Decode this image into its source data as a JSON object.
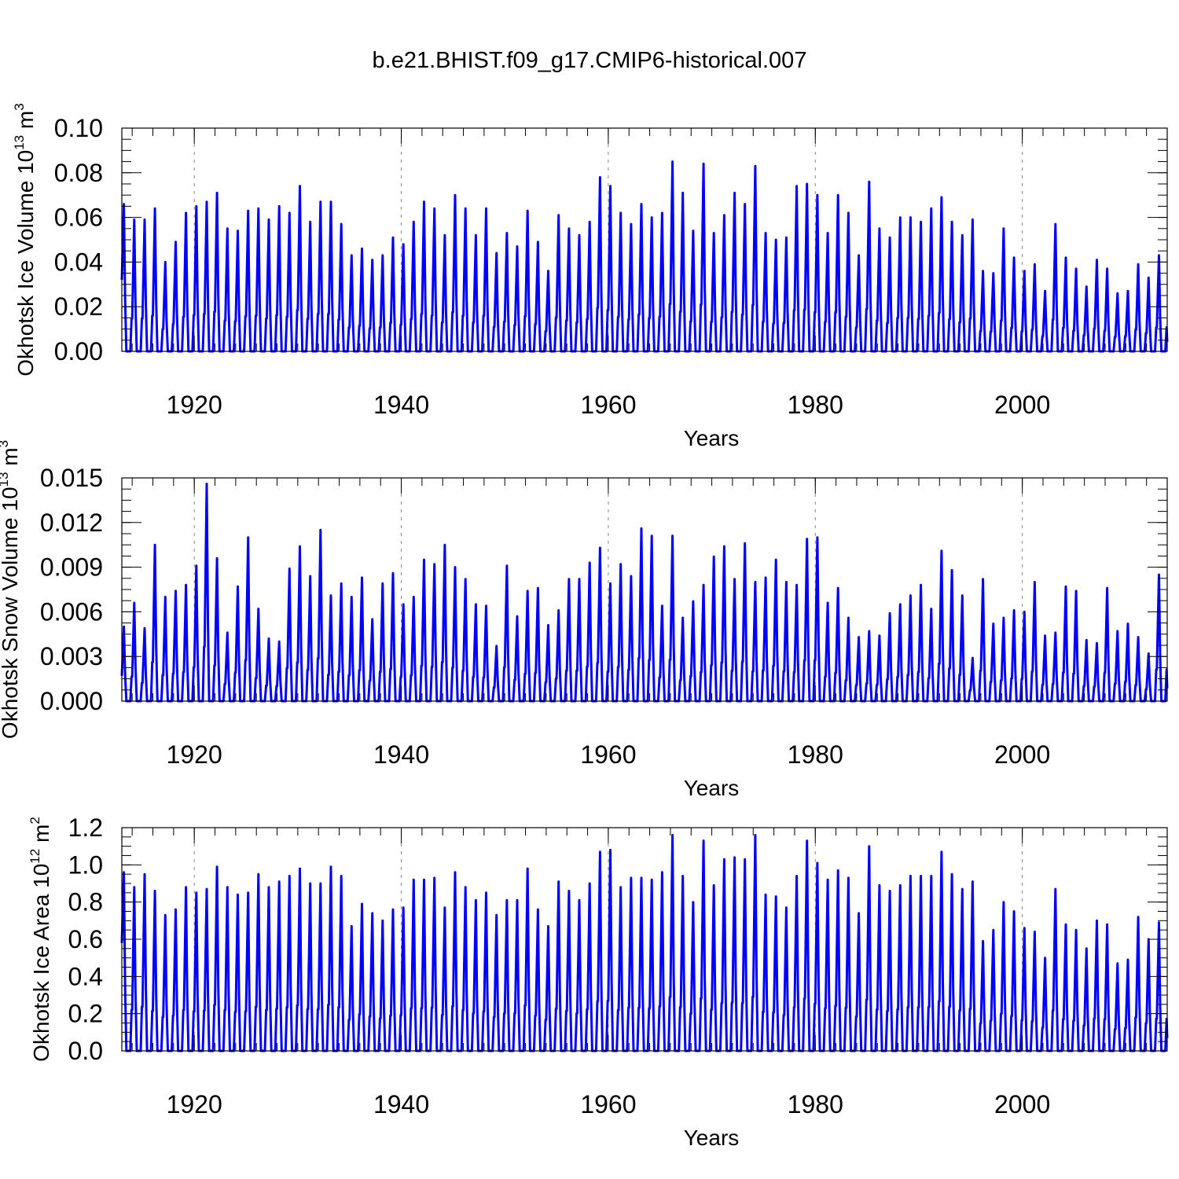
{
  "title": "b.e21.BHIST.f09_g17.CMIP6-historical.007",
  "colors": {
    "series": "#0000ff",
    "axis": "#000000",
    "refline": "#888888"
  },
  "chart_data": [
    {
      "type": "line",
      "name": "ice-volume",
      "ylabel": "Okhotsk Ice Volume 10",
      "ylabel_exp": "13",
      "ylabel_unit": " m",
      "ylabel_unit_exp": "3",
      "xlabel": "Years",
      "xlim": [
        1913,
        2014
      ],
      "xticks": [
        1920,
        1940,
        1960,
        1980,
        2000
      ],
      "xtick_labels": [
        "1920",
        "1940",
        "1960",
        "1980",
        "2000"
      ],
      "ylim": [
        0,
        0.1
      ],
      "yticks": [
        0,
        0.02,
        0.04,
        0.06,
        0.08,
        0.1
      ],
      "ytick_labels": [
        "0.00",
        "0.02",
        "0.04",
        "0.06",
        "0.08",
        "0.10"
      ],
      "y_minor_step": 0.005,
      "x_minor_step": 2,
      "peak_month": 0.2,
      "start_value": 0.032,
      "annual_peaks": [
        0.066,
        0.059,
        0.059,
        0.064,
        0.04,
        0.049,
        0.062,
        0.065,
        0.067,
        0.071,
        0.055,
        0.054,
        0.063,
        0.064,
        0.059,
        0.065,
        0.062,
        0.074,
        0.058,
        0.067,
        0.067,
        0.057,
        0.043,
        0.046,
        0.041,
        0.043,
        0.051,
        0.048,
        0.058,
        0.067,
        0.064,
        0.052,
        0.07,
        0.064,
        0.052,
        0.064,
        0.044,
        0.053,
        0.047,
        0.063,
        0.049,
        0.036,
        0.061,
        0.055,
        0.052,
        0.058,
        0.078,
        0.074,
        0.062,
        0.057,
        0.066,
        0.06,
        0.062,
        0.085,
        0.071,
        0.054,
        0.084,
        0.053,
        0.061,
        0.071,
        0.066,
        0.083,
        0.053,
        0.05,
        0.051,
        0.074,
        0.075,
        0.07,
        0.053,
        0.07,
        0.062,
        0.043,
        0.076,
        0.055,
        0.051,
        0.06,
        0.06,
        0.058,
        0.064,
        0.069,
        0.058,
        0.052,
        0.059,
        0.036,
        0.035,
        0.055,
        0.042,
        0.036,
        0.039,
        0.027,
        0.057,
        0.042,
        0.037,
        0.029,
        0.041,
        0.037,
        0.026,
        0.027,
        0.039,
        0.033,
        0.043
      ]
    },
    {
      "type": "line",
      "name": "snow-volume",
      "ylabel": "Okhotsk Snow Volume 10",
      "ylabel_exp": "13",
      "ylabel_unit": " m",
      "ylabel_unit_exp": "3",
      "xlabel": "Years",
      "xlim": [
        1913,
        2014
      ],
      "xticks": [
        1920,
        1940,
        1960,
        1980,
        2000
      ],
      "xtick_labels": [
        "1920",
        "1940",
        "1960",
        "1980",
        "2000"
      ],
      "ylim": [
        0,
        0.015
      ],
      "yticks": [
        0,
        0.003,
        0.006,
        0.009,
        0.012,
        0.015
      ],
      "ytick_labels": [
        "0.000",
        "0.003",
        "0.006",
        "0.009",
        "0.012",
        "0.015"
      ],
      "y_minor_step": 0.00075,
      "x_minor_step": 2,
      "peak_month": 0.2,
      "start_value": 0.0017,
      "annual_peaks": [
        0.005,
        0.0066,
        0.0049,
        0.0105,
        0.007,
        0.0074,
        0.0078,
        0.0091,
        0.0146,
        0.0096,
        0.0046,
        0.0077,
        0.011,
        0.0062,
        0.0042,
        0.004,
        0.0089,
        0.0104,
        0.0084,
        0.0115,
        0.0071,
        0.0079,
        0.007,
        0.0083,
        0.0055,
        0.0079,
        0.0086,
        0.0065,
        0.007,
        0.0095,
        0.0092,
        0.0105,
        0.009,
        0.0082,
        0.0065,
        0.0064,
        0.0037,
        0.0091,
        0.0057,
        0.0074,
        0.0076,
        0.0051,
        0.0061,
        0.0082,
        0.0082,
        0.0093,
        0.0103,
        0.0079,
        0.0092,
        0.0084,
        0.0116,
        0.0111,
        0.0064,
        0.0111,
        0.0056,
        0.0067,
        0.0078,
        0.0097,
        0.0104,
        0.0082,
        0.0106,
        0.008,
        0.0083,
        0.0095,
        0.008,
        0.0078,
        0.0109,
        0.011,
        0.0066,
        0.0076,
        0.0056,
        0.0043,
        0.0047,
        0.0044,
        0.0059,
        0.0065,
        0.0071,
        0.0078,
        0.0062,
        0.0101,
        0.0088,
        0.0071,
        0.0029,
        0.0082,
        0.0052,
        0.0056,
        0.0061,
        0.006,
        0.008,
        0.0044,
        0.0046,
        0.0077,
        0.0074,
        0.0041,
        0.0039,
        0.0076,
        0.0047,
        0.0052,
        0.0043,
        0.0032,
        0.0085
      ]
    },
    {
      "type": "line",
      "name": "ice-area",
      "ylabel": "Okhotsk Ice Area 10",
      "ylabel_exp": "12",
      "ylabel_unit": " m",
      "ylabel_unit_exp": "2",
      "xlabel": "Years",
      "xlim": [
        1913,
        2014
      ],
      "xticks": [
        1920,
        1940,
        1960,
        1980,
        2000
      ],
      "xtick_labels": [
        "1920",
        "1940",
        "1960",
        "1980",
        "2000"
      ],
      "ylim": [
        0,
        1.2
      ],
      "yticks": [
        0,
        0.2,
        0.4,
        0.6,
        0.8,
        1.0,
        1.2
      ],
      "ytick_labels": [
        "0.0",
        "0.2",
        "0.4",
        "0.6",
        "0.8",
        "1.0",
        "1.2"
      ],
      "y_minor_step": 0.05,
      "x_minor_step": 2,
      "peak_month": 0.2,
      "start_value": 0.58,
      "annual_peaks": [
        0.96,
        0.88,
        0.95,
        0.86,
        0.73,
        0.76,
        0.88,
        0.85,
        0.87,
        0.99,
        0.88,
        0.84,
        0.85,
        0.95,
        0.88,
        0.91,
        0.94,
        0.98,
        0.9,
        0.9,
        0.99,
        0.94,
        0.67,
        0.79,
        0.74,
        0.7,
        0.76,
        0.77,
        0.92,
        0.92,
        0.93,
        0.77,
        0.96,
        0.88,
        0.81,
        0.85,
        0.73,
        0.81,
        0.81,
        0.98,
        0.76,
        0.67,
        0.91,
        0.86,
        0.81,
        0.9,
        1.07,
        1.08,
        0.88,
        0.93,
        0.93,
        0.92,
        0.96,
        1.16,
        0.94,
        0.8,
        1.13,
        0.89,
        1.03,
        1.04,
        1.03,
        1.16,
        0.84,
        0.83,
        0.77,
        0.94,
        1.13,
        1.01,
        0.92,
        0.97,
        0.93,
        0.74,
        1.1,
        0.89,
        0.86,
        0.89,
        0.94,
        0.94,
        0.94,
        1.07,
        0.95,
        0.87,
        0.91,
        0.59,
        0.65,
        0.8,
        0.75,
        0.66,
        0.64,
        0.5,
        0.87,
        0.68,
        0.65,
        0.55,
        0.7,
        0.68,
        0.47,
        0.49,
        0.72,
        0.6,
        0.69
      ]
    }
  ]
}
